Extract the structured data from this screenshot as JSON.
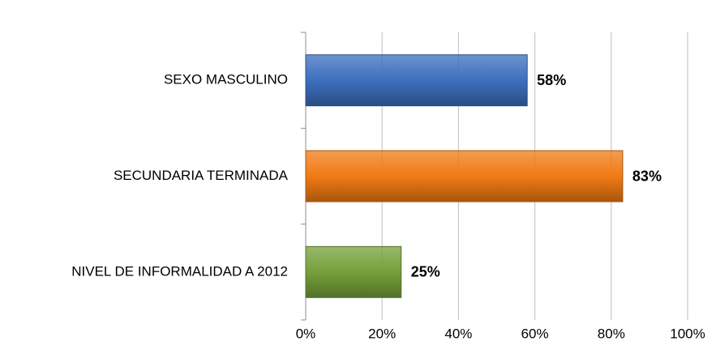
{
  "chart_data": {
    "type": "bar",
    "orientation": "horizontal",
    "categories": [
      "SEXO MASCULINO",
      "SECUNDARIA TERMINADA",
      "NIVEL DE INFORMALIDAD A 2012"
    ],
    "values": [
      58,
      83,
      25
    ],
    "value_labels": [
      "58%",
      "83%",
      "25%"
    ],
    "colors": [
      "#3c6fbe",
      "#f07b14",
      "#76a03a"
    ],
    "xlim": [
      0,
      100
    ],
    "xticks": [
      {
        "value": 0,
        "label": "0%"
      },
      {
        "value": 20,
        "label": "20%"
      },
      {
        "value": 40,
        "label": "40%"
      },
      {
        "value": 60,
        "label": "60%"
      },
      {
        "value": 80,
        "label": "80%"
      },
      {
        "value": 100,
        "label": "100%"
      }
    ],
    "grid": true
  }
}
